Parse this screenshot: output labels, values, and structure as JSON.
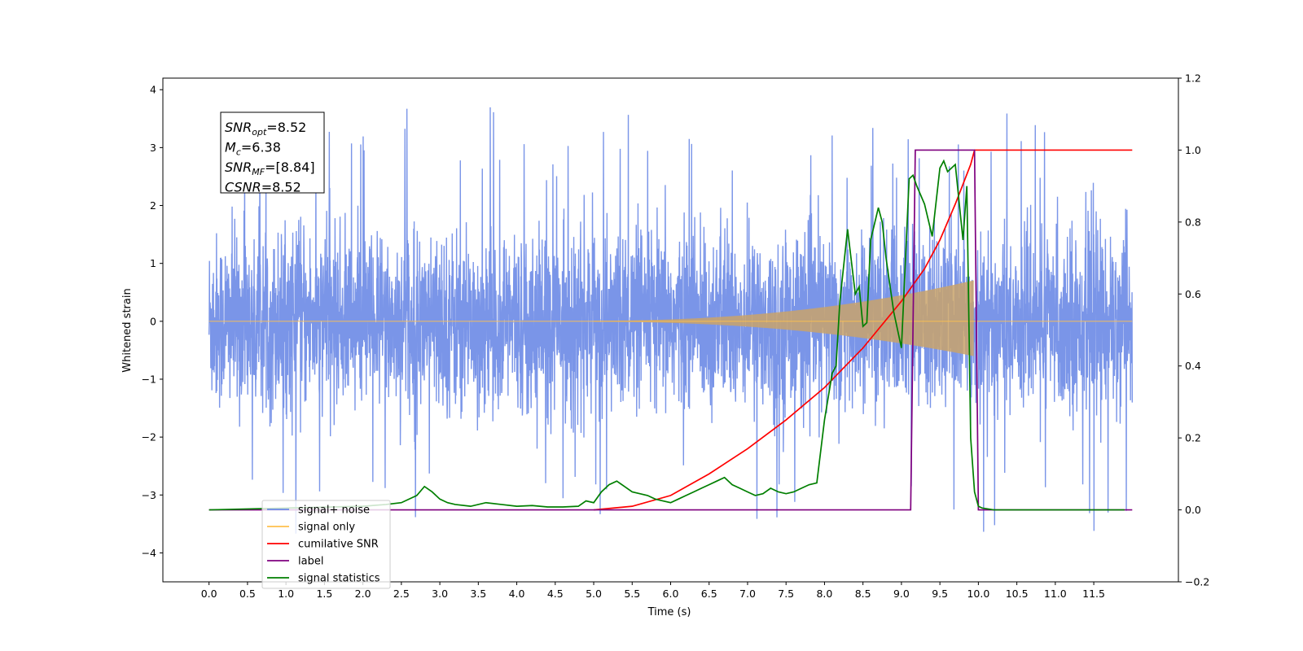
{
  "chart_data": {
    "type": "line",
    "title": "",
    "xlabel": "Time (s)",
    "ylabel": "Whitened strain",
    "xlim": [
      -0.6,
      12.6
    ],
    "ylim": [
      -4.5,
      4.2
    ],
    "y2lim": [
      -0.2,
      1.2
    ],
    "xticks": [
      "0.0",
      "0.5",
      "1.0",
      "1.5",
      "2.0",
      "2.5",
      "3.0",
      "3.5",
      "4.0",
      "4.5",
      "5.0",
      "5.5",
      "6.0",
      "6.5",
      "7.0",
      "7.5",
      "8.0",
      "8.5",
      "9.0",
      "9.5",
      "10.0",
      "10.5",
      "11.0",
      "11.5"
    ],
    "yticks": [
      "−4",
      "−3",
      "−2",
      "−1",
      "0",
      "1",
      "2",
      "3",
      "4"
    ],
    "y2ticks": [
      "−0.2",
      "0.0",
      "0.2",
      "0.4",
      "0.6",
      "0.8",
      "1.0",
      "1.2"
    ],
    "grid": false,
    "legend_position": "lower-left",
    "annotation": {
      "lines": [
        {
          "base": "SNR",
          "sub": "opt",
          "rest": "=8.52"
        },
        {
          "base": "M",
          "sub": "c",
          "rest": "=6.38"
        },
        {
          "base": "SNR",
          "sub": "MF",
          "rest": "=[8.84]"
        },
        {
          "base": "CSNR",
          "sub": "",
          "rest": "=8.52"
        }
      ]
    },
    "noise": {
      "t_start": 0.0,
      "t_end": 12.0,
      "band_min": -2.0,
      "band_max": 2.2,
      "spike_min": -4.1,
      "spike_max": 3.8
    },
    "series": [
      {
        "name": "signal+ noise",
        "color": "#6b8ae6",
        "axis": "left",
        "description_only": false
      },
      {
        "name": "signal only",
        "color": "#ffc04d",
        "axis": "left",
        "chirp": {
          "t0": 5.0,
          "t_merge": 9.95,
          "amp_at_merge": 0.7
        }
      },
      {
        "name": "cumilative SNR",
        "color": "#ff0000",
        "axis": "right",
        "x": [
          5.0,
          5.5,
          6.0,
          6.5,
          7.0,
          7.5,
          8.0,
          8.5,
          9.0,
          9.3,
          9.5,
          9.7,
          9.9,
          9.95,
          10.0,
          12.0
        ],
        "y": [
          0.0,
          0.01,
          0.04,
          0.1,
          0.17,
          0.25,
          0.34,
          0.45,
          0.58,
          0.67,
          0.75,
          0.85,
          0.96,
          1.0,
          1.0,
          1.0
        ]
      },
      {
        "name": "label",
        "color": "#7f007f",
        "axis": "right",
        "x": [
          0.0,
          9.12,
          9.18,
          9.95,
          10.0,
          12.0
        ],
        "y": [
          0.0,
          0.0,
          1.0,
          1.0,
          0.0,
          0.0
        ]
      },
      {
        "name": "signal statistics",
        "color": "#007f00",
        "axis": "right",
        "x": [
          0.0,
          2.0,
          2.3,
          2.5,
          2.7,
          2.8,
          2.9,
          3.0,
          3.1,
          3.2,
          3.4,
          3.6,
          3.8,
          4.0,
          4.2,
          4.4,
          4.6,
          4.8,
          4.9,
          5.0,
          5.1,
          5.2,
          5.3,
          5.4,
          5.5,
          5.6,
          5.7,
          5.8,
          5.9,
          6.0,
          6.1,
          6.2,
          6.3,
          6.4,
          6.5,
          6.6,
          6.7,
          6.8,
          6.9,
          7.0,
          7.1,
          7.2,
          7.3,
          7.4,
          7.5,
          7.6,
          7.7,
          7.8,
          7.9,
          8.0,
          8.1,
          8.15,
          8.2,
          8.3,
          8.4,
          8.45,
          8.5,
          8.55,
          8.6,
          8.7,
          8.75,
          8.8,
          8.9,
          9.0,
          9.1,
          9.15,
          9.2,
          9.3,
          9.4,
          9.5,
          9.55,
          9.6,
          9.7,
          9.8,
          9.85,
          9.9,
          9.95,
          10.0,
          10.05,
          10.2,
          11.0,
          11.9
        ],
        "y": [
          0.0,
          0.01,
          0.015,
          0.02,
          0.04,
          0.065,
          0.05,
          0.03,
          0.02,
          0.015,
          0.01,
          0.02,
          0.015,
          0.01,
          0.012,
          0.008,
          0.008,
          0.01,
          0.025,
          0.02,
          0.05,
          0.07,
          0.08,
          0.065,
          0.05,
          0.045,
          0.04,
          0.03,
          0.025,
          0.02,
          0.03,
          0.04,
          0.05,
          0.06,
          0.07,
          0.08,
          0.09,
          0.07,
          0.06,
          0.05,
          0.04,
          0.045,
          0.06,
          0.05,
          0.045,
          0.05,
          0.06,
          0.07,
          0.075,
          0.25,
          0.38,
          0.4,
          0.58,
          0.78,
          0.6,
          0.62,
          0.51,
          0.52,
          0.75,
          0.84,
          0.8,
          0.7,
          0.55,
          0.45,
          0.92,
          0.93,
          0.9,
          0.85,
          0.76,
          0.95,
          0.97,
          0.94,
          0.96,
          0.75,
          0.9,
          0.2,
          0.05,
          0.01,
          0.005,
          0.0,
          0.0,
          0.0
        ]
      }
    ]
  }
}
